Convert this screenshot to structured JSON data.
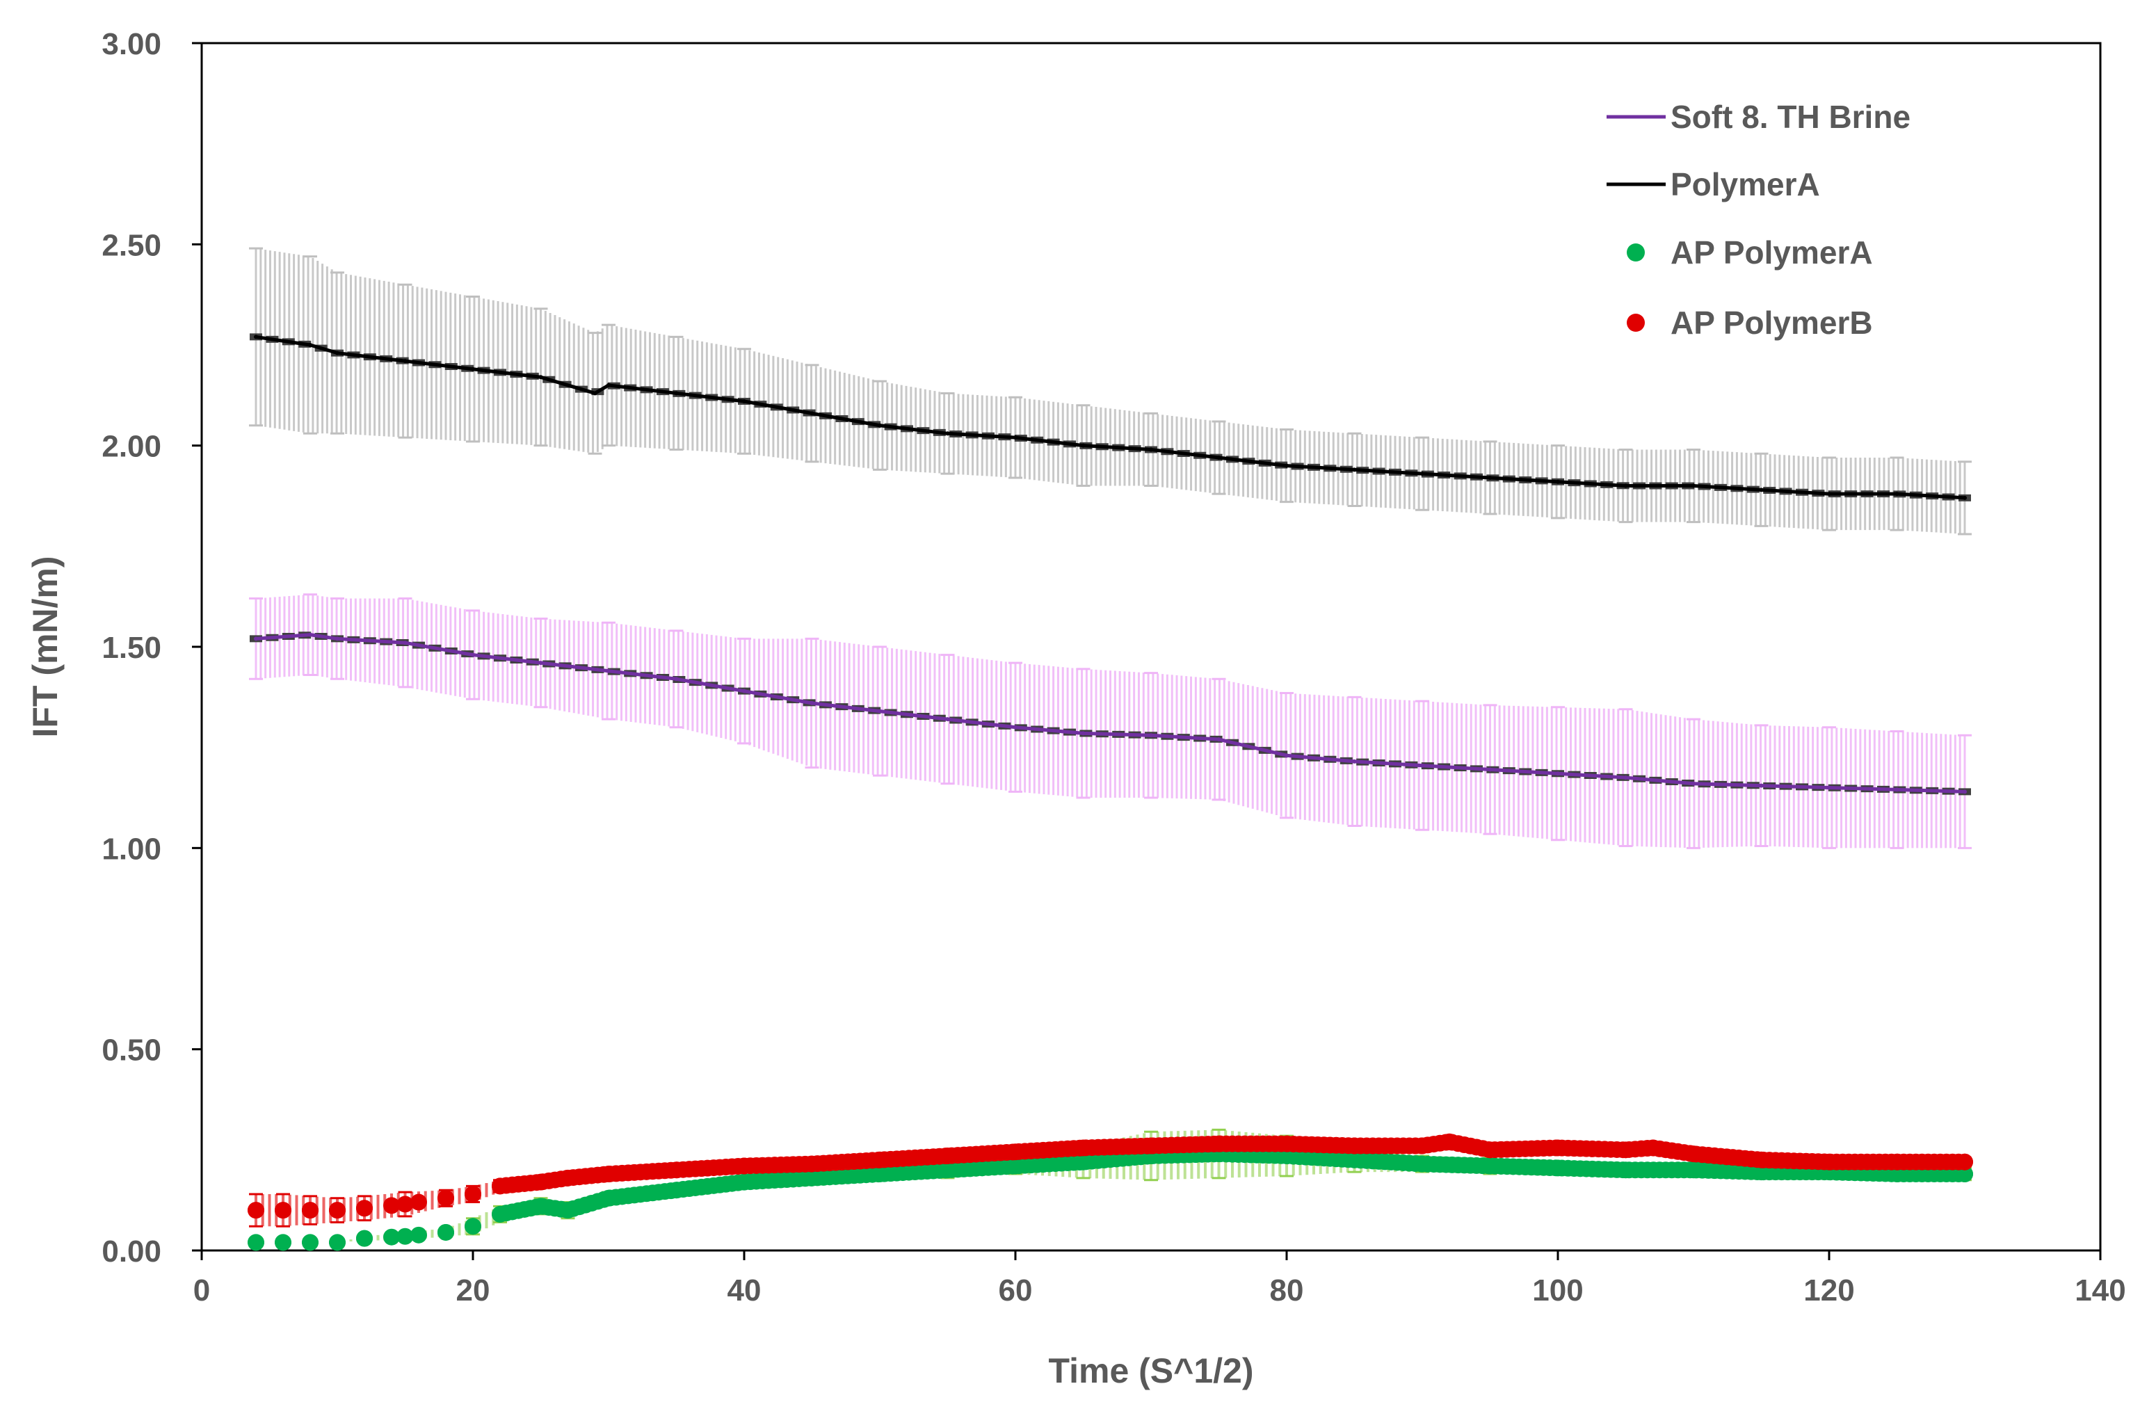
{
  "chart_data": {
    "type": "scatter",
    "title": "",
    "xlabel": "Time (S^1/2)",
    "ylabel": "IFT (mN/m)",
    "xlim": [
      0,
      140
    ],
    "ylim": [
      0,
      3
    ],
    "xticks": [
      "0",
      "20",
      "40",
      "60",
      "80",
      "100",
      "120",
      "140"
    ],
    "yticks": [
      "0.00",
      "0.50",
      "1.00",
      "1.50",
      "2.00",
      "2.50",
      "3.00"
    ],
    "grid": false,
    "legend_position": "top-right",
    "series": [
      {
        "name": "Soft 8. TH Brine",
        "style": "line",
        "color": "#7030a0",
        "error_color": "#efb5f7",
        "x": [
          4,
          8,
          10,
          15,
          20,
          25,
          30,
          35,
          40,
          45,
          50,
          55,
          60,
          65,
          70,
          75,
          80,
          85,
          90,
          95,
          100,
          105,
          110,
          115,
          120,
          125,
          130
        ],
        "y": [
          1.52,
          1.53,
          1.52,
          1.51,
          1.48,
          1.46,
          1.44,
          1.42,
          1.39,
          1.36,
          1.34,
          1.32,
          1.3,
          1.285,
          1.28,
          1.27,
          1.23,
          1.215,
          1.205,
          1.195,
          1.185,
          1.175,
          1.16,
          1.155,
          1.15,
          1.145,
          1.14
        ],
        "err": [
          0.1,
          0.1,
          0.1,
          0.11,
          0.11,
          0.11,
          0.12,
          0.12,
          0.13,
          0.16,
          0.16,
          0.16,
          0.16,
          0.16,
          0.155,
          0.15,
          0.155,
          0.16,
          0.16,
          0.16,
          0.165,
          0.17,
          0.16,
          0.15,
          0.15,
          0.145,
          0.14
        ]
      },
      {
        "name": "PolymerA",
        "style": "line",
        "color": "#000000",
        "error_color": "#bfbfbf",
        "x": [
          4,
          8,
          10,
          15,
          20,
          25,
          29,
          30,
          35,
          40,
          45,
          50,
          55,
          60,
          65,
          70,
          75,
          80,
          85,
          90,
          95,
          100,
          105,
          110,
          115,
          120,
          125,
          130
        ],
        "y": [
          2.27,
          2.25,
          2.23,
          2.21,
          2.19,
          2.17,
          2.13,
          2.15,
          2.13,
          2.11,
          2.08,
          2.05,
          2.03,
          2.02,
          2.0,
          1.99,
          1.97,
          1.95,
          1.94,
          1.93,
          1.92,
          1.91,
          1.9,
          1.9,
          1.89,
          1.88,
          1.88,
          1.87
        ],
        "err": [
          0.22,
          0.22,
          0.2,
          0.19,
          0.18,
          0.17,
          0.15,
          0.15,
          0.14,
          0.13,
          0.12,
          0.11,
          0.1,
          0.1,
          0.1,
          0.09,
          0.09,
          0.09,
          0.09,
          0.09,
          0.09,
          0.09,
          0.09,
          0.09,
          0.09,
          0.09,
          0.09,
          0.09
        ]
      },
      {
        "name": "AP PolymerA",
        "style": "marker",
        "color": "#00b050",
        "error_color": "#92d050",
        "x": [
          4,
          6,
          8,
          10,
          12,
          15,
          18,
          20,
          22,
          25,
          27,
          30,
          35,
          40,
          45,
          50,
          55,
          60,
          65,
          70,
          75,
          80,
          85,
          90,
          95,
          100,
          105,
          110,
          115,
          120,
          125,
          130
        ],
        "y": [
          0.02,
          0.02,
          0.02,
          0.02,
          0.03,
          0.035,
          0.045,
          0.06,
          0.09,
          0.11,
          0.1,
          0.13,
          0.15,
          0.17,
          0.18,
          0.19,
          0.2,
          0.21,
          0.22,
          0.235,
          0.24,
          0.235,
          0.225,
          0.215,
          0.21,
          0.205,
          0.2,
          0.2,
          0.195,
          0.195,
          0.19,
          0.19
        ],
        "err": [
          0,
          0,
          0,
          0,
          0.005,
          0.01,
          0.01,
          0.02,
          0.02,
          0.02,
          0.02,
          0.015,
          0.01,
          0.01,
          0.01,
          0.01,
          0.02,
          0.02,
          0.04,
          0.06,
          0.06,
          0.05,
          0.03,
          0.02,
          0.02,
          0.015,
          0.015,
          0.015,
          0.015,
          0.015,
          0.015,
          0.015
        ]
      },
      {
        "name": "AP PolymerB",
        "style": "marker",
        "color": "#e00000",
        "error_color": "#e00000",
        "x": [
          4,
          6,
          8,
          10,
          12,
          15,
          18,
          20,
          22,
          25,
          27,
          30,
          35,
          40,
          45,
          50,
          55,
          60,
          65,
          70,
          75,
          80,
          85,
          90,
          92,
          95,
          100,
          105,
          107,
          110,
          115,
          120,
          125,
          130
        ],
        "y": [
          0.1,
          0.1,
          0.1,
          0.1,
          0.105,
          0.115,
          0.13,
          0.14,
          0.16,
          0.17,
          0.18,
          0.19,
          0.2,
          0.21,
          0.215,
          0.225,
          0.235,
          0.245,
          0.255,
          0.26,
          0.265,
          0.265,
          0.26,
          0.26,
          0.27,
          0.25,
          0.255,
          0.25,
          0.255,
          0.24,
          0.225,
          0.22,
          0.22,
          0.22
        ],
        "err": [
          0.04,
          0.04,
          0.035,
          0.03,
          0.03,
          0.03,
          0.02,
          0.02,
          0.015,
          0.01,
          0.01,
          0.01,
          0.01,
          0.01,
          0.01,
          0.01,
          0.01,
          0.01,
          0.01,
          0.01,
          0.01,
          0.01,
          0.01,
          0.01,
          0.01,
          0.01,
          0.01,
          0.01,
          0.01,
          0.01,
          0.01,
          0.01,
          0.01,
          0.01
        ]
      }
    ]
  }
}
